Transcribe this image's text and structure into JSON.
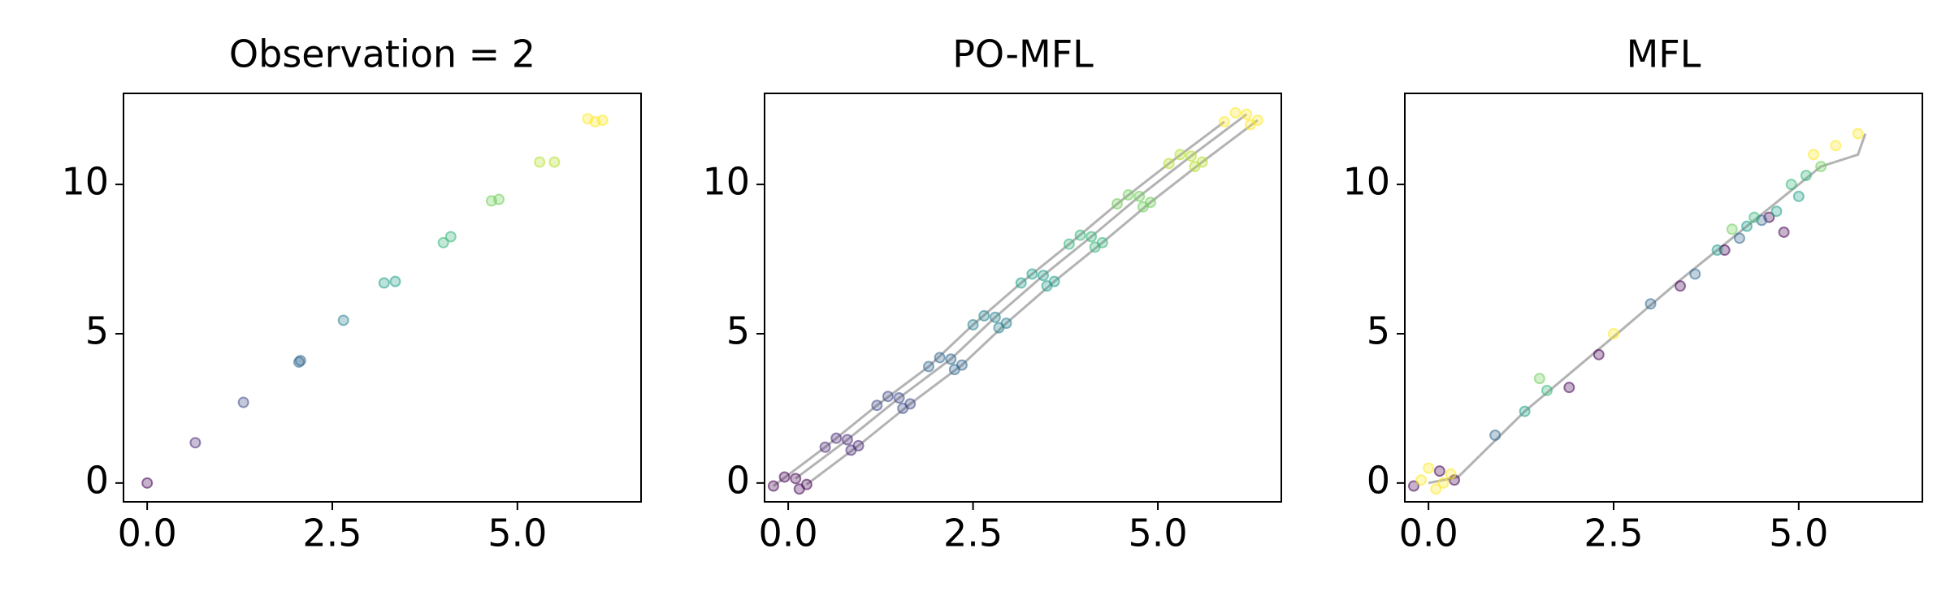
{
  "chart_data": [
    {
      "type": "scatter",
      "title": "Observation = 2",
      "xlim": [
        -0.32,
        6.67
      ],
      "ylim": [
        -0.63,
        13.05
      ],
      "xticks": [
        {
          "value": 0,
          "label": "0.0"
        },
        2.5,
        {
          "value": 5,
          "label": "5.0"
        }
      ],
      "yticks": [
        0,
        5,
        10
      ],
      "series": [
        {
          "color": "#440154",
          "x": [
            0
          ],
          "values": [
            0
          ]
        },
        {
          "color": "#482878",
          "x": [
            0.65
          ],
          "values": [
            1.35
          ]
        },
        {
          "color": "#3e4989",
          "x": [
            1.3
          ],
          "values": [
            2.7
          ]
        },
        {
          "color": "#31688e",
          "x": [
            2.05,
            2.07
          ],
          "values": [
            4.05,
            4.1
          ]
        },
        {
          "color": "#26828e",
          "x": [
            2.65
          ],
          "values": [
            5.45
          ]
        },
        {
          "color": "#1f9e89",
          "x": [
            3.2,
            3.35
          ],
          "values": [
            6.7,
            6.75
          ]
        },
        {
          "color": "#35b779",
          "x": [
            4.0,
            4.1
          ],
          "values": [
            8.05,
            8.25
          ]
        },
        {
          "color": "#6ece58",
          "x": [
            4.65,
            4.75
          ],
          "values": [
            9.45,
            9.5
          ]
        },
        {
          "color": "#b5de2b",
          "x": [
            5.3,
            5.5
          ],
          "values": [
            10.75,
            10.75
          ]
        },
        {
          "color": "#fde725",
          "x": [
            5.95,
            6.05,
            6.15
          ],
          "values": [
            12.2,
            12.1,
            12.15
          ]
        }
      ]
    },
    {
      "type": "scatter",
      "title": "PO-MFL",
      "xlim": [
        -0.32,
        6.67
      ],
      "ylim": [
        -0.63,
        13.05
      ],
      "xticks": [
        {
          "value": 0,
          "label": "0.0"
        },
        2.5,
        {
          "value": 5,
          "label": "5.0"
        }
      ],
      "yticks": [
        0,
        5,
        10
      ],
      "lines": [
        {
          "color": "#808080",
          "x": [
            -0.2,
            0.5,
            1.2,
            1.9,
            2.5,
            3.15,
            3.8,
            4.45,
            5.15,
            5.9
          ],
          "values": [
            -0.1,
            1.2,
            2.6,
            3.9,
            5.3,
            6.7,
            8.0,
            9.35,
            10.7,
            12.1
          ]
        },
        {
          "color": "#808080",
          "x": [
            0.1,
            0.8,
            1.5,
            2.2,
            2.8,
            3.45,
            4.1,
            4.75,
            5.45,
            6.2
          ],
          "values": [
            0.15,
            1.45,
            2.85,
            4.15,
            5.55,
            6.95,
            8.25,
            9.6,
            10.95,
            12.35
          ]
        },
        {
          "color": "#808080",
          "x": [
            0.25,
            0.95,
            1.65,
            2.35,
            2.95,
            3.6,
            4.25,
            4.9,
            5.6,
            6.35
          ],
          "values": [
            -0.05,
            1.25,
            2.65,
            3.95,
            5.35,
            6.75,
            8.05,
            9.4,
            10.75,
            12.15
          ]
        }
      ],
      "series": [
        {
          "color": "#440154",
          "x": [
            -0.2,
            0.1,
            0.25,
            -0.05,
            0.15
          ],
          "values": [
            -0.1,
            0.15,
            -0.05,
            0.2,
            -0.2
          ]
        },
        {
          "color": "#482878",
          "x": [
            0.5,
            0.8,
            0.95,
            0.65,
            0.85
          ],
          "values": [
            1.2,
            1.45,
            1.25,
            1.5,
            1.1
          ]
        },
        {
          "color": "#3e4989",
          "x": [
            1.2,
            1.5,
            1.65,
            1.35,
            1.55
          ],
          "values": [
            2.6,
            2.85,
            2.65,
            2.9,
            2.5
          ]
        },
        {
          "color": "#31688e",
          "x": [
            1.9,
            2.2,
            2.35,
            2.05,
            2.25
          ],
          "values": [
            3.9,
            4.15,
            3.95,
            4.2,
            3.8
          ]
        },
        {
          "color": "#26828e",
          "x": [
            2.5,
            2.8,
            2.95,
            2.65,
            2.85
          ],
          "values": [
            5.3,
            5.55,
            5.35,
            5.6,
            5.2
          ]
        },
        {
          "color": "#1f9e89",
          "x": [
            3.15,
            3.45,
            3.6,
            3.3,
            3.5
          ],
          "values": [
            6.7,
            6.95,
            6.75,
            7.0,
            6.6
          ]
        },
        {
          "color": "#35b779",
          "x": [
            3.8,
            4.1,
            4.25,
            3.95,
            4.15
          ],
          "values": [
            8.0,
            8.25,
            8.05,
            8.3,
            7.9
          ]
        },
        {
          "color": "#6ece58",
          "x": [
            4.45,
            4.75,
            4.9,
            4.6,
            4.8
          ],
          "values": [
            9.35,
            9.6,
            9.4,
            9.65,
            9.25
          ]
        },
        {
          "color": "#b5de2b",
          "x": [
            5.15,
            5.45,
            5.6,
            5.3,
            5.5
          ],
          "values": [
            10.7,
            10.95,
            10.75,
            11.0,
            10.6
          ]
        },
        {
          "color": "#fde725",
          "x": [
            5.9,
            6.2,
            6.35,
            6.05,
            6.25
          ],
          "values": [
            12.1,
            12.35,
            12.15,
            12.4,
            12.0
          ]
        }
      ]
    },
    {
      "type": "scatter",
      "title": "MFL",
      "xlim": [
        -0.32,
        6.67
      ],
      "ylim": [
        -0.63,
        13.05
      ],
      "xticks": [
        {
          "value": 0,
          "label": "0.0"
        },
        2.5,
        {
          "value": 5,
          "label": "5.0"
        }
      ],
      "yticks": [
        0,
        5,
        10
      ],
      "lines": [
        {
          "color": "#808080",
          "x": [
            0,
            0.4,
            1.3,
            2.5,
            3.4,
            4.2,
            4.8,
            5.3,
            5.8,
            5.9
          ],
          "values": [
            0,
            0.2,
            2.4,
            4.9,
            6.8,
            8.4,
            9.6,
            10.6,
            11.0,
            11.7
          ]
        }
      ],
      "series": [
        {
          "color": "#440154",
          "x": [
            -0.2,
            0.15,
            0.35,
            1.9,
            2.3,
            3.4,
            4.0,
            4.6,
            4.8
          ],
          "values": [
            -0.1,
            0.4,
            0.1,
            3.2,
            4.3,
            6.6,
            7.8,
            8.9,
            8.4
          ]
        },
        {
          "color": "#31688e",
          "x": [
            0.9,
            3.6,
            4.2,
            4.5,
            3.0
          ],
          "values": [
            1.6,
            7.0,
            8.2,
            8.8,
            6.0
          ]
        },
        {
          "color": "#1f9e89",
          "x": [
            4.3,
            4.7,
            5.0,
            3.9,
            1.3
          ],
          "values": [
            8.6,
            9.1,
            9.6,
            7.8,
            2.4
          ]
        },
        {
          "color": "#35b779",
          "x": [
            4.9,
            5.1,
            1.6,
            4.4
          ],
          "values": [
            10.0,
            10.3,
            3.1,
            8.9
          ]
        },
        {
          "color": "#6ece58",
          "x": [
            1.5,
            5.3,
            4.1
          ],
          "values": [
            3.5,
            10.6,
            8.5
          ]
        },
        {
          "color": "#fde725",
          "x": [
            -0.1,
            0.1,
            0.3,
            0.0,
            0.2,
            5.2,
            5.5,
            5.8,
            2.5
          ],
          "values": [
            0.1,
            -0.2,
            0.3,
            0.5,
            0.0,
            11.0,
            11.3,
            11.7,
            5.0
          ]
        }
      ]
    }
  ]
}
